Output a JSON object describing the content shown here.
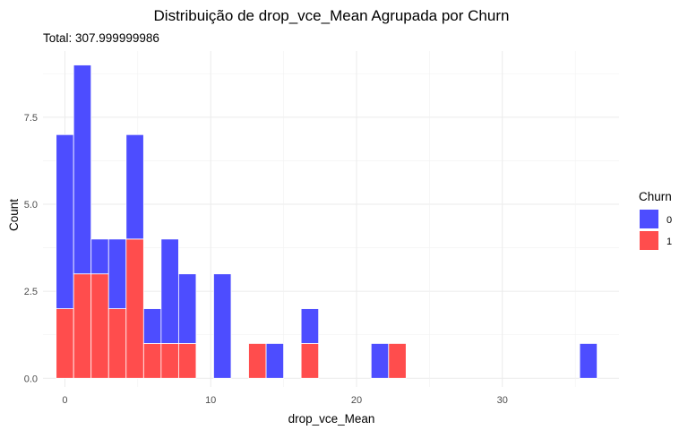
{
  "chart_data": {
    "type": "bar",
    "title": "Distribuição de drop_vce_Mean Agrupada por Churn",
    "subtitle": "Total: 307.999999986",
    "xlabel": "drop_vce_Mean",
    "ylabel": "Count",
    "xlim": [
      -1.5,
      38.0
    ],
    "ylim": [
      -0.25,
      9.4
    ],
    "x_ticks": [
      0,
      10,
      20,
      30
    ],
    "y_ticks": [
      0.0,
      2.5,
      5.0,
      7.5
    ],
    "x_tick_labels": [
      "0",
      "10",
      "20",
      "30"
    ],
    "y_tick_labels": [
      "0.0",
      "2.5",
      "5.0",
      "7.5"
    ],
    "bin_width": 1.2,
    "stacked": true,
    "grid": true,
    "legend": {
      "title": "Churn",
      "position": "right",
      "entries": [
        {
          "label": "0",
          "color": "#4d4dff"
        },
        {
          "label": "1",
          "color": "#ff4d4d"
        }
      ]
    },
    "bins": [
      {
        "x": 0.0,
        "churn0": 5,
        "churn1": 2
      },
      {
        "x": 1.2,
        "churn0": 6,
        "churn1": 3
      },
      {
        "x": 2.4,
        "churn0": 1,
        "churn1": 3
      },
      {
        "x": 3.6,
        "churn0": 2,
        "churn1": 2
      },
      {
        "x": 4.8,
        "churn0": 3,
        "churn1": 4
      },
      {
        "x": 6.0,
        "churn0": 1,
        "churn1": 1
      },
      {
        "x": 7.2,
        "churn0": 3,
        "churn1": 1
      },
      {
        "x": 8.4,
        "churn0": 2,
        "churn1": 1
      },
      {
        "x": 10.8,
        "churn0": 3,
        "churn1": 0
      },
      {
        "x": 13.2,
        "churn0": 0,
        "churn1": 1
      },
      {
        "x": 14.4,
        "churn0": 1,
        "churn1": 0
      },
      {
        "x": 16.8,
        "churn0": 1,
        "churn1": 1
      },
      {
        "x": 21.6,
        "churn0": 1,
        "churn1": 0
      },
      {
        "x": 22.8,
        "churn0": 0,
        "churn1": 1
      },
      {
        "x": 35.9,
        "churn0": 1,
        "churn1": 0
      }
    ]
  }
}
